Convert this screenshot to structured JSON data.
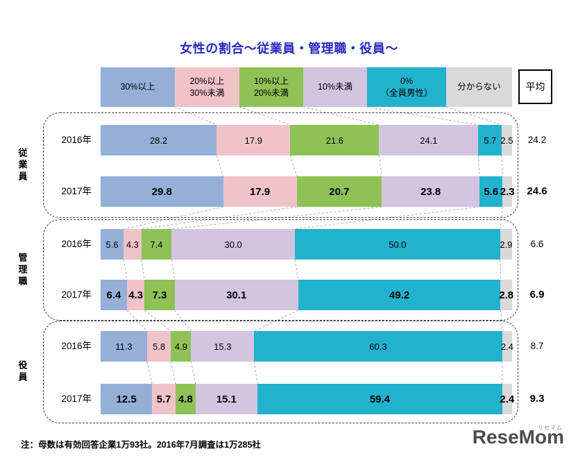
{
  "title": "女性の割合～従業員・管理職・役員～",
  "average_label": "平均",
  "note": "注：母数は有効回答企業1万93社。2016年7月調査は1万285社",
  "logo": {
    "text": "ReseMom",
    "ruby": "リセマム"
  },
  "legend": [
    {
      "label": "30%以上",
      "color": "#95b0d8"
    },
    {
      "label": "20%以上\n30%未満",
      "color": "#f0c3c9"
    },
    {
      "label": "10%以上\n20%未満",
      "color": "#8ec257"
    },
    {
      "label": "10%未満",
      "color": "#d3c4e0"
    },
    {
      "label": "0%\n（全員男性）",
      "color": "#23b2cd"
    },
    {
      "label": "分からない",
      "color": "#d9d9d9"
    }
  ],
  "chart_data": {
    "type": "bar",
    "stacked": true,
    "orientation": "horizontal",
    "unit": "%",
    "title": "女性の割合～従業員・管理職・役員～",
    "categories": [
      "30%以上",
      "20%以上30%未満",
      "10%以上20%未満",
      "10%未満",
      "0%（全員男性）",
      "分からない"
    ],
    "xlim": [
      0,
      100
    ],
    "groups": [
      {
        "name": "従業員",
        "rows": [
          {
            "year": "2016年",
            "values": [
              28.2,
              17.9,
              21.6,
              24.1,
              5.7,
              2.5
            ],
            "average": 24.2,
            "bold": false
          },
          {
            "year": "2017年",
            "values": [
              29.8,
              17.9,
              20.7,
              23.8,
              5.6,
              2.3
            ],
            "average": 24.6,
            "bold": true
          }
        ]
      },
      {
        "name": "管理職",
        "rows": [
          {
            "year": "2016年",
            "values": [
              5.6,
              4.3,
              7.4,
              30.0,
              50.0,
              2.9
            ],
            "average": 6.6,
            "bold": false
          },
          {
            "year": "2017年",
            "values": [
              6.4,
              4.3,
              7.3,
              30.1,
              49.2,
              2.8
            ],
            "average": 6.9,
            "bold": true
          }
        ]
      },
      {
        "name": "役員",
        "rows": [
          {
            "year": "2016年",
            "values": [
              11.3,
              5.8,
              4.9,
              15.3,
              60.3,
              2.4
            ],
            "average": 8.7,
            "bold": false
          },
          {
            "year": "2017年",
            "values": [
              12.5,
              5.7,
              4.8,
              15.1,
              59.4,
              2.4
            ],
            "average": 9.3,
            "bold": true
          }
        ]
      }
    ]
  }
}
